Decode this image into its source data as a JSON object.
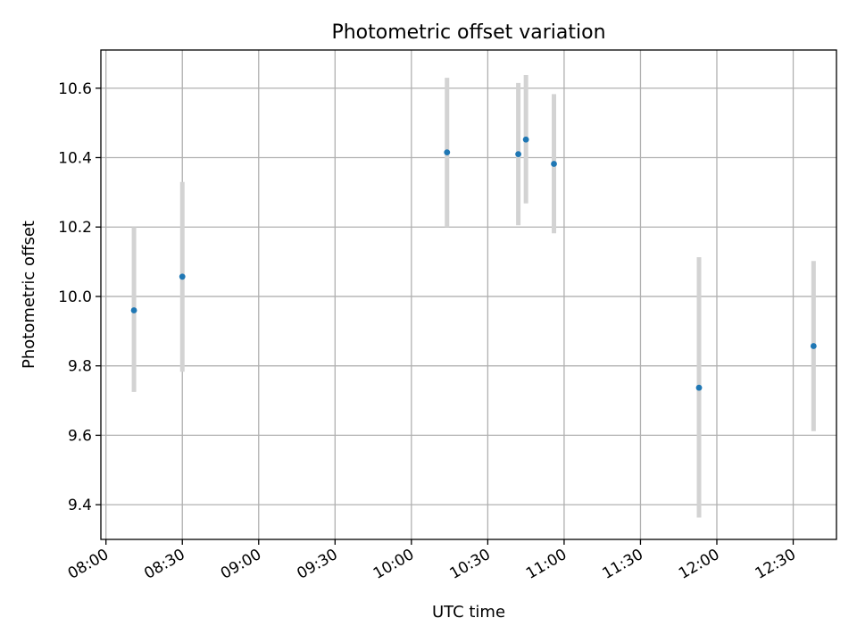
{
  "chart_data": {
    "type": "scatter",
    "title": "Photometric offset variation",
    "xlabel": "UTC time",
    "ylabel": "Photometric offset",
    "x_ticks": [
      "08:00",
      "08:30",
      "09:00",
      "09:30",
      "10:00",
      "10:30",
      "11:00",
      "11:30",
      "12:00",
      "12:30"
    ],
    "y_ticks": [
      "9.4",
      "9.6",
      "9.8",
      "10.0",
      "10.2",
      "10.4",
      "10.6"
    ],
    "xlim": [
      "07:58",
      "12:47"
    ],
    "ylim": [
      9.3,
      10.71
    ],
    "grid": true,
    "points": [
      {
        "x": "08:11",
        "y": 9.96,
        "err_low": 9.725,
        "err_high": 10.2
      },
      {
        "x": "08:30",
        "y": 10.057,
        "err_low": 9.783,
        "err_high": 10.33
      },
      {
        "x": "10:14",
        "y": 10.415,
        "err_low": 10.2,
        "err_high": 10.63
      },
      {
        "x": "10:42",
        "y": 10.41,
        "err_low": 10.205,
        "err_high": 10.615
      },
      {
        "x": "10:45",
        "y": 10.452,
        "err_low": 10.268,
        "err_high": 10.638
      },
      {
        "x": "10:56",
        "y": 10.382,
        "err_low": 10.182,
        "err_high": 10.583
      },
      {
        "x": "11:53",
        "y": 9.737,
        "err_low": 9.363,
        "err_high": 10.113
      },
      {
        "x": "12:38",
        "y": 9.857,
        "err_low": 9.612,
        "err_high": 10.102
      }
    ],
    "colors": {
      "point": "#1f77b4",
      "errorbar": "#d3d3d3",
      "grid": "#b0b0b0"
    }
  }
}
